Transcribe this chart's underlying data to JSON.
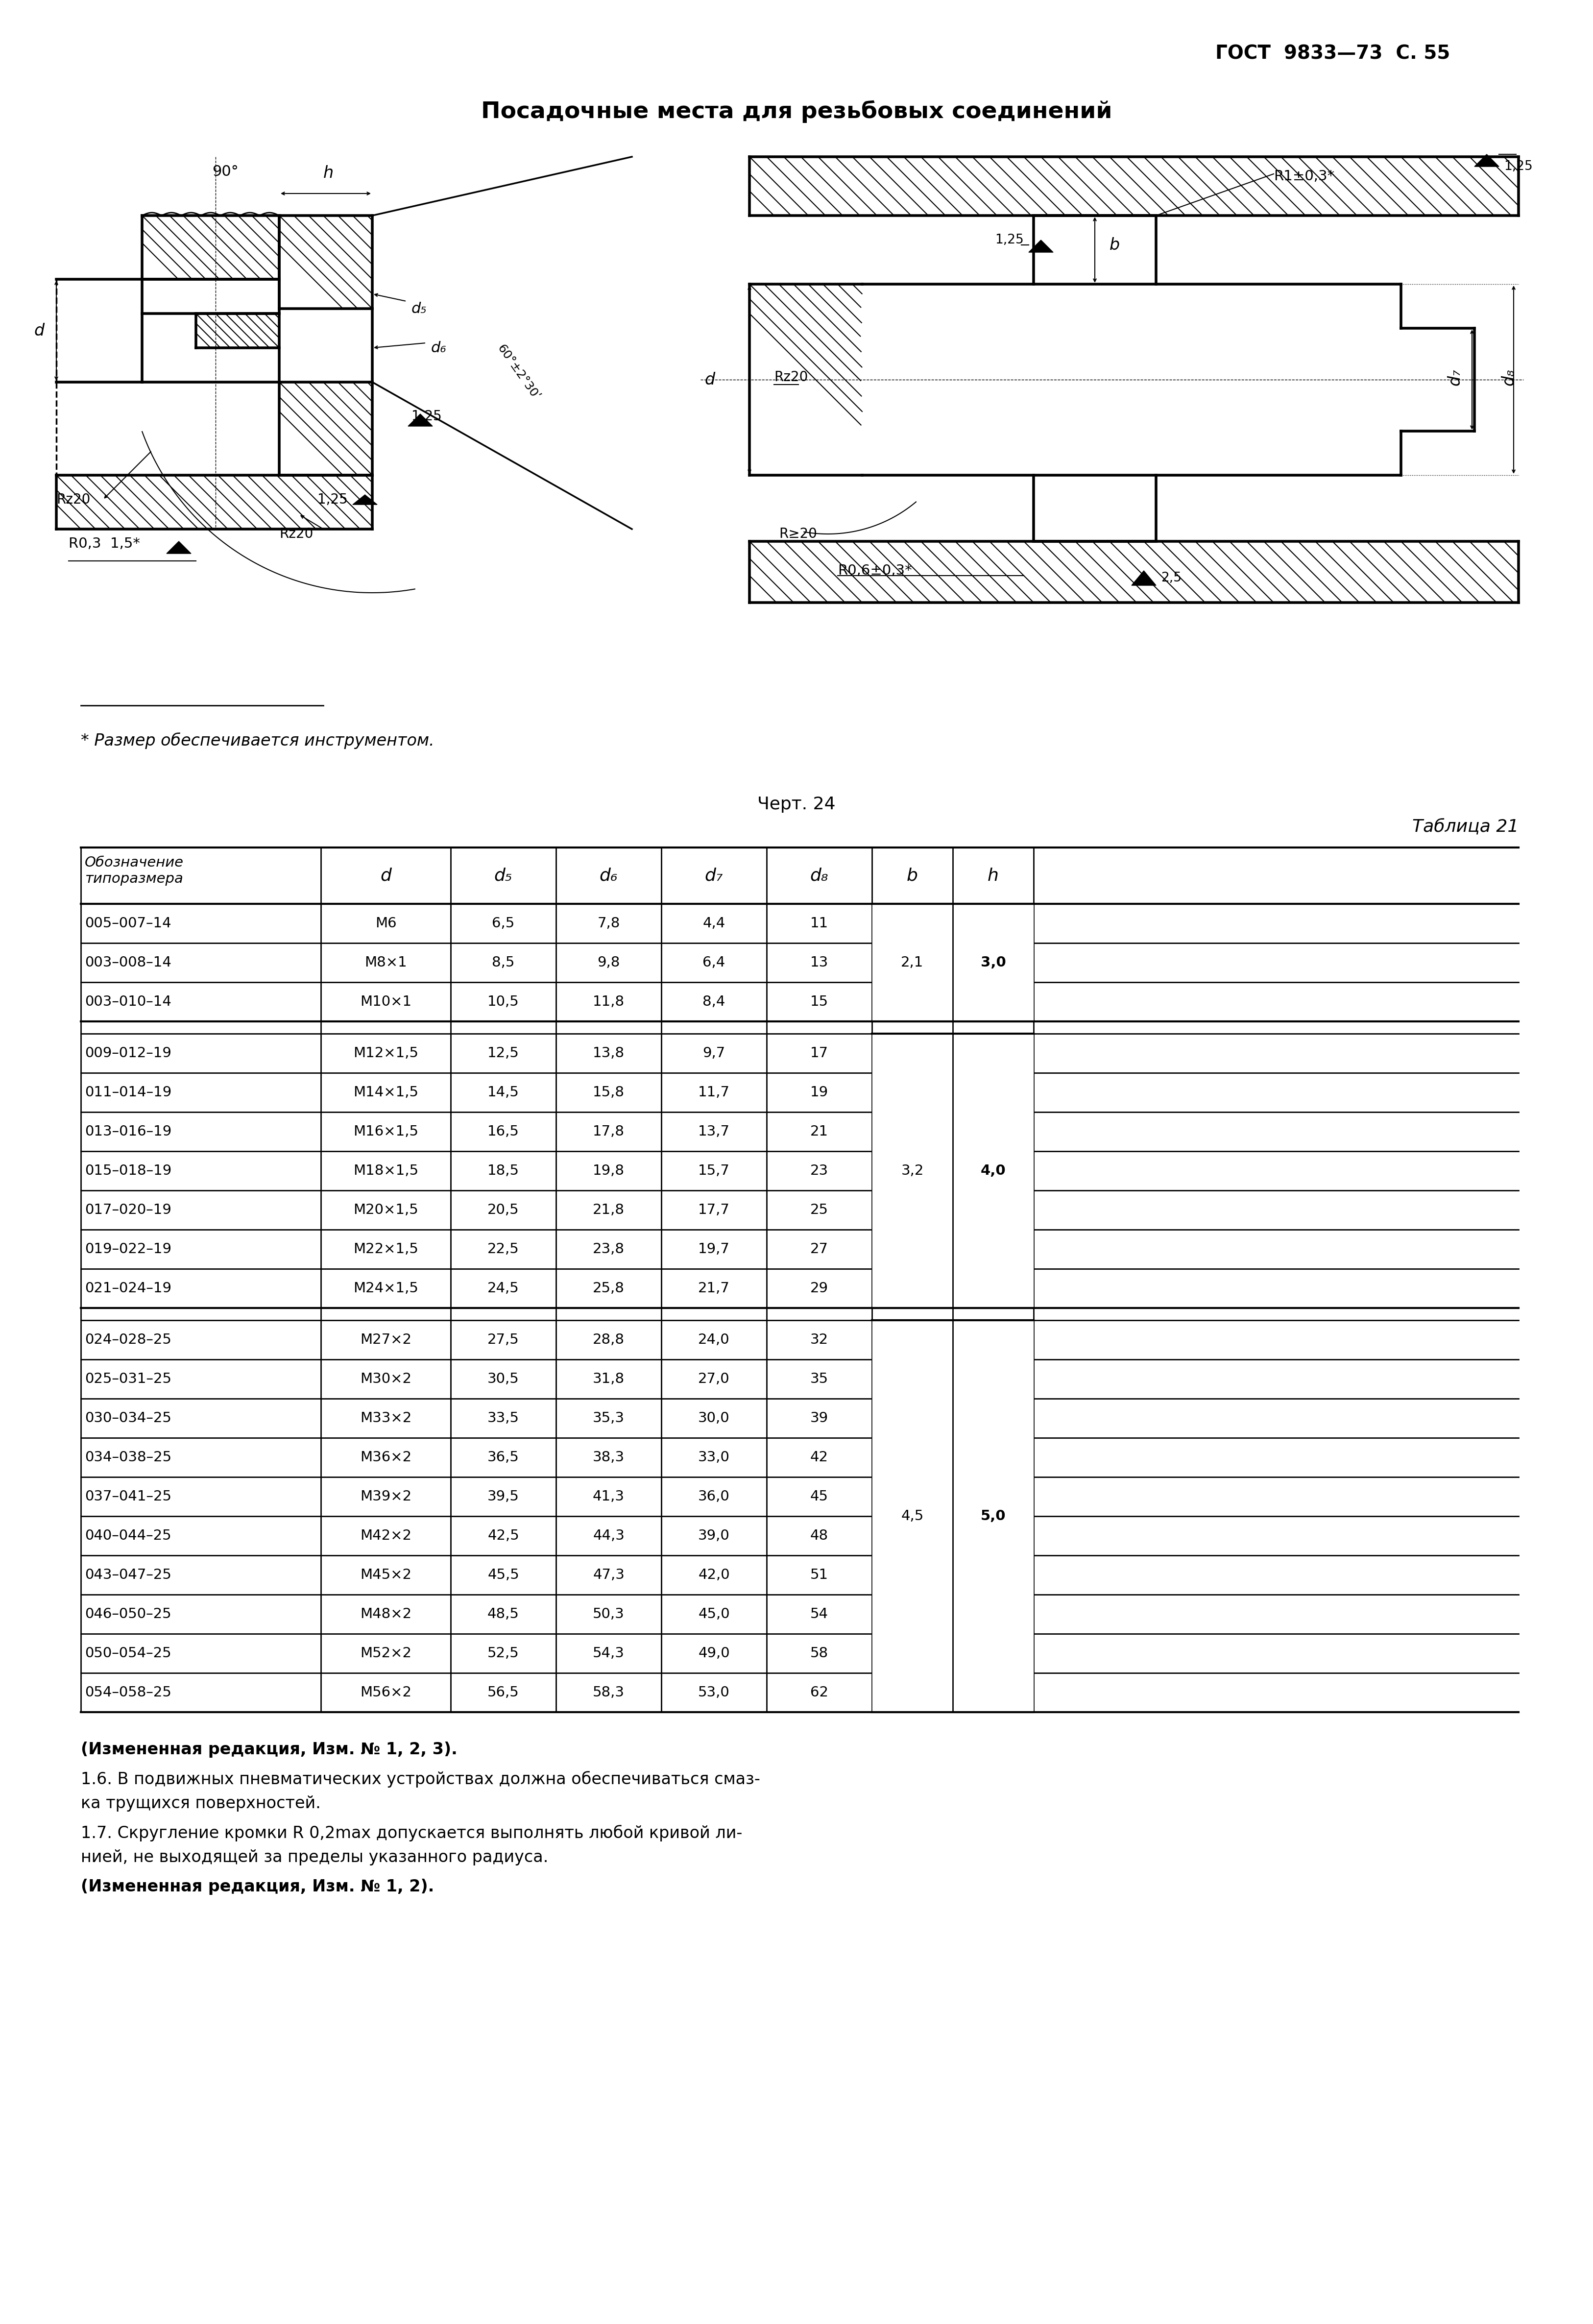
{
  "page_header": "ГОСТ  9833—73  С. 55",
  "diagram_title": "Посадочные места для резьбовых соединений",
  "footnote_line": "* Размер обеспечивается инструментом.",
  "chart_label": "Черт. 24",
  "table_title": "Таблица 21",
  "col_headers": [
    "Обозначение\nтипоразмера",
    "d",
    "d5",
    "d6",
    "d7",
    "d8",
    "b",
    "h"
  ],
  "rows": [
    [
      "005–007–14",
      "М6",
      "6,5",
      "7,8",
      "4,4",
      "11",
      "",
      ""
    ],
    [
      "003–008–14",
      "М8×1",
      "8,5",
      "9,8",
      "6,4",
      "13",
      "2,1",
      "3,0"
    ],
    [
      "003–010–14",
      "М10×1",
      "10,5",
      "11,8",
      "8,4",
      "15",
      "",
      ""
    ],
    [
      "",
      "",
      "",
      "",
      "",
      "",
      "",
      ""
    ],
    [
      "009–012–19",
      "М12×1,5",
      "12,5",
      "13,8",
      "9,7",
      "17",
      "",
      ""
    ],
    [
      "011–014–19",
      "М14×1,5",
      "14,5",
      "15,8",
      "11,7",
      "19",
      "",
      ""
    ],
    [
      "013–016–19",
      "М16×1,5",
      "16,5",
      "17,8",
      "13,7",
      "21",
      "3,2",
      "4,0"
    ],
    [
      "015–018–19",
      "М18×1,5",
      "18,5",
      "19,8",
      "15,7",
      "23",
      "",
      ""
    ],
    [
      "017–020–19",
      "М20×1,5",
      "20,5",
      "21,8",
      "17,7",
      "25",
      "",
      ""
    ],
    [
      "019–022–19",
      "М22×1,5",
      "22,5",
      "23,8",
      "19,7",
      "27",
      "",
      ""
    ],
    [
      "021–024–19",
      "М24×1,5",
      "24,5",
      "25,8",
      "21,7",
      "29",
      "",
      ""
    ],
    [
      "",
      "",
      "",
      "",
      "",
      "",
      "",
      ""
    ],
    [
      "024–028–25",
      "М27×2",
      "27,5",
      "28,8",
      "24,0",
      "32",
      "",
      ""
    ],
    [
      "025–031–25",
      "М30×2",
      "30,5",
      "31,8",
      "27,0",
      "35",
      "",
      ""
    ],
    [
      "030–034–25",
      "М33×2",
      "33,5",
      "35,3",
      "30,0",
      "39",
      "",
      ""
    ],
    [
      "034–038–25",
      "М36×2",
      "36,5",
      "38,3",
      "33,0",
      "42",
      "",
      ""
    ],
    [
      "037–041–25",
      "М39×2",
      "39,5",
      "41,3",
      "36,0",
      "45",
      "4,5",
      "5,0"
    ],
    [
      "040–044–25",
      "М42×2",
      "42,5",
      "44,3",
      "39,0",
      "48",
      "",
      ""
    ],
    [
      "043–047–25",
      "М45×2",
      "45,5",
      "47,3",
      "42,0",
      "51",
      "",
      ""
    ],
    [
      "046–050–25",
      "М48×2",
      "48,5",
      "50,3",
      "45,0",
      "54",
      "",
      ""
    ],
    [
      "050–054–25",
      "М52×2",
      "52,5",
      "54,3",
      "49,0",
      "58",
      "",
      ""
    ],
    [
      "054–058–25",
      "М56×2",
      "56,5",
      "58,3",
      "53,0",
      "62",
      "",
      ""
    ]
  ],
  "footer_bold": "(Измененная редакция, Изм. № 1, 2, 3).",
  "footer_text1": "1.6. В подвижных пневматических устройствах должна обеспечиваться смаз-",
  "footer_text2": "ка трущихся поверхностей.",
  "footer_text3": "1.7. Скругление кромки R 0,2max допускается выполнять любой кривой ли-",
  "footer_text4": "нией, не выходящей за пределы указанного радиуса.",
  "footer_bold2": "(Измененная редакция, Изм. № 1, 2).",
  "bg_color": "#ffffff",
  "text_color": "#000000"
}
